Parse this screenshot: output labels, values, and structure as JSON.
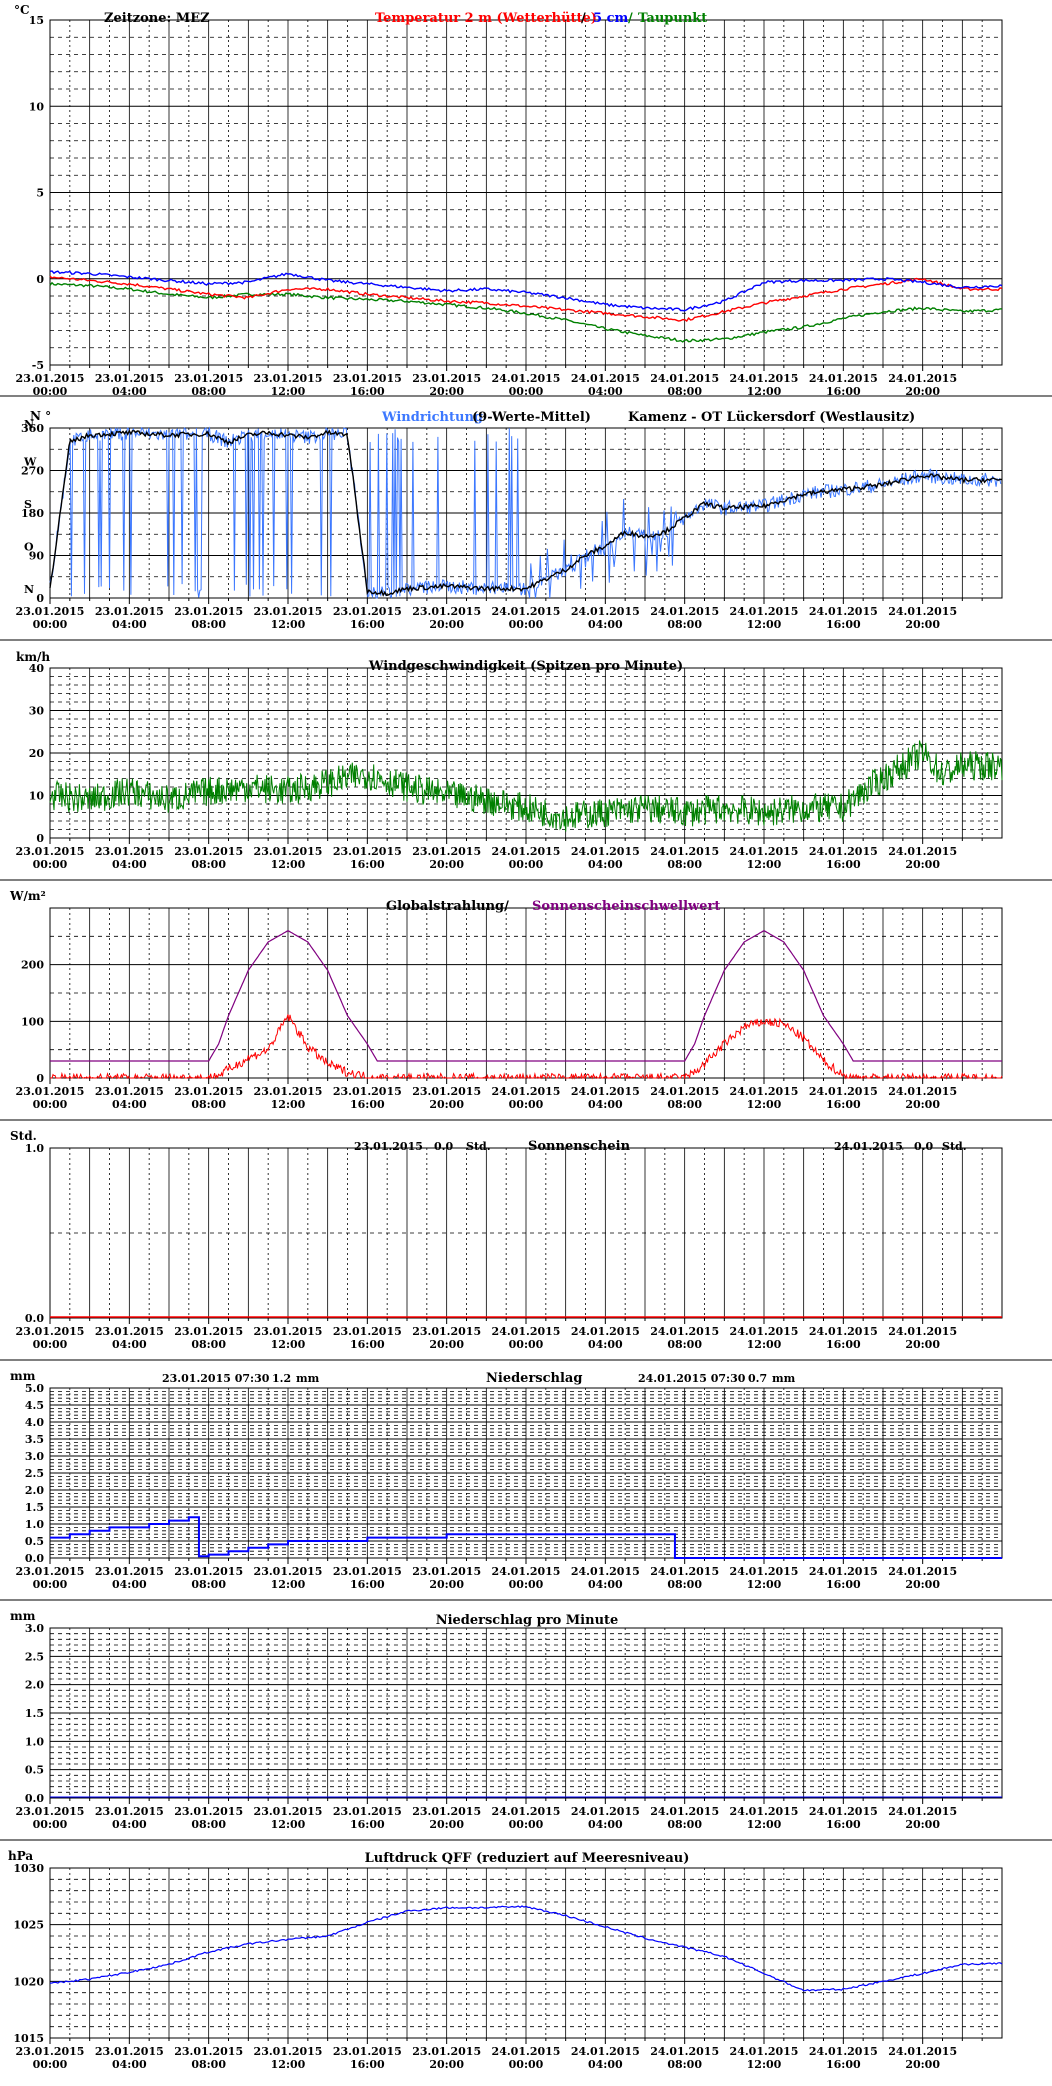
{
  "colors": {
    "temp2m": "#ff0000",
    "temp5cm": "#0000ff",
    "dewpoint": "#008000",
    "winddir_mean": "#0000ff",
    "winddir_raw": "#3c78ff",
    "windspeed": "#008000",
    "radiation": "#ff0000",
    "threshold": "#800080",
    "precip": "#0000ff",
    "pressure": "#0000ff",
    "grid": "#000000"
  },
  "x_ticks": [
    [
      "23.01.2015",
      "00:00"
    ],
    [
      "23.01.2015",
      "04:00"
    ],
    [
      "23.01.2015",
      "08:00"
    ],
    [
      "23.01.2015",
      "12:00"
    ],
    [
      "23.01.2015",
      "16:00"
    ],
    [
      "23.01.2015",
      "20:00"
    ],
    [
      "24.01.2015",
      "00:00"
    ],
    [
      "24.01.2015",
      "04:00"
    ],
    [
      "24.01.2015",
      "08:00"
    ],
    [
      "24.01.2015",
      "12:00"
    ],
    [
      "24.01.2015",
      "16:00"
    ],
    [
      "24.01.2015",
      "20:00"
    ]
  ],
  "chart_data": [
    {
      "type": "line",
      "unit": "°C",
      "title_parts": [
        "Zeitzone: MEZ",
        "Temperatur 2 m (Wetterhütte)",
        " / ",
        "5 cm",
        " / ",
        "Taupunkt"
      ],
      "ylim": [
        -5,
        15
      ],
      "y_ticks": [
        -5,
        0,
        5,
        10,
        15
      ],
      "x_hours": [
        0,
        2,
        4,
        6,
        8,
        10,
        12,
        14,
        16,
        18,
        20,
        22,
        24,
        26,
        28,
        30,
        32,
        34,
        36,
        38,
        40,
        42,
        44,
        46,
        48
      ],
      "series": [
        {
          "name": "Temperatur 2 m (Wetterhütte)",
          "values": [
            0.1,
            -0.1,
            -0.3,
            -0.6,
            -0.9,
            -1.1,
            -0.6,
            -0.6,
            -0.9,
            -1.1,
            -1.3,
            -1.4,
            -1.6,
            -1.8,
            -2.0,
            -2.2,
            -2.4,
            -1.9,
            -1.4,
            -1.0,
            -0.6,
            -0.3,
            0.0,
            -0.6,
            -0.6
          ]
        },
        {
          "name": "5 cm",
          "values": [
            0.4,
            0.3,
            0.1,
            -0.1,
            -0.3,
            -0.2,
            0.3,
            -0.1,
            -0.3,
            -0.5,
            -0.7,
            -0.6,
            -0.8,
            -1.1,
            -1.5,
            -1.7,
            -1.8,
            -1.3,
            -0.2,
            -0.1,
            -0.1,
            0.0,
            -0.2,
            -0.5,
            -0.4
          ]
        },
        {
          "name": "Taupunkt",
          "values": [
            -0.3,
            -0.4,
            -0.6,
            -0.9,
            -1.1,
            -0.9,
            -0.9,
            -1.1,
            -1.2,
            -1.3,
            -1.5,
            -1.7,
            -2.0,
            -2.4,
            -2.9,
            -3.3,
            -3.6,
            -3.5,
            -3.1,
            -2.8,
            -2.3,
            -1.9,
            -1.7,
            -1.9,
            -1.8
          ]
        }
      ]
    },
    {
      "type": "line",
      "unit": "N °",
      "title_parts": [
        "Windrichtung",
        " (9-Werte-Mittel)",
        "Kamenz - OT Lückersdorf (Westlausitz)"
      ],
      "ylim": [
        0,
        360
      ],
      "y_ticks": [
        0,
        90,
        180,
        270,
        360
      ],
      "y_labels": [
        "N",
        "O",
        "S",
        "W",
        "N"
      ],
      "x_hours": [
        0,
        1,
        2,
        4,
        6,
        8,
        9,
        10,
        11,
        12,
        13,
        14,
        15,
        16,
        17,
        18,
        20,
        22,
        24,
        25,
        26,
        27,
        28,
        29,
        30,
        31,
        32,
        33,
        34,
        36,
        38,
        40,
        42,
        44,
        46,
        48
      ],
      "series": [
        {
          "name": "9-Werte-Mittel",
          "values": [
            20,
            330,
            345,
            350,
            345,
            348,
            330,
            345,
            350,
            345,
            340,
            350,
            345,
            15,
            10,
            20,
            25,
            20,
            20,
            40,
            60,
            90,
            110,
            140,
            130,
            140,
            170,
            200,
            190,
            195,
            220,
            230,
            240,
            260,
            250,
            250
          ]
        }
      ]
    },
    {
      "type": "line",
      "unit": "km/h",
      "title": "Windgeschwindigkeit (Spitzen pro Minute)",
      "ylim": [
        0,
        40
      ],
      "y_ticks": [
        0,
        10,
        20,
        30,
        40
      ],
      "x_hours": [
        0,
        2,
        4,
        6,
        8,
        10,
        12,
        14,
        16,
        18,
        20,
        22,
        24,
        26,
        28,
        30,
        32,
        34,
        36,
        38,
        40,
        41,
        42,
        43,
        44,
        45,
        46,
        48
      ],
      "series": [
        {
          "name": "Windgeschwindigkeit",
          "values": [
            10,
            9,
            11,
            9,
            11,
            12,
            11,
            13,
            15,
            12,
            10,
            9,
            7,
            5,
            6,
            7,
            6,
            7,
            6,
            7,
            7,
            11,
            14,
            17,
            20,
            15,
            17,
            17
          ]
        }
      ]
    },
    {
      "type": "line",
      "unit": "W/m²",
      "title_parts": [
        "Globalstrahlung/ ",
        "Sonnenscheinschwellwert"
      ],
      "ylim": [
        0,
        300
      ],
      "y_ticks": [
        0,
        100,
        200
      ],
      "x_hours": [
        0,
        8,
        8.5,
        9,
        10,
        11,
        12,
        13,
        14,
        15,
        16,
        16.5,
        24,
        32,
        32.5,
        33,
        34,
        35,
        36,
        37,
        38,
        39,
        40,
        40.5,
        48
      ],
      "series": [
        {
          "name": "Globalstrahlung",
          "values": [
            0,
            0,
            5,
            15,
            35,
            50,
            110,
            55,
            25,
            10,
            2,
            0,
            0,
            0,
            10,
            25,
            60,
            90,
            100,
            95,
            70,
            30,
            5,
            0,
            0
          ]
        },
        {
          "name": "Sonnenscheinschwellwert",
          "values": [
            30,
            30,
            60,
            110,
            190,
            240,
            260,
            240,
            190,
            110,
            60,
            30,
            30,
            30,
            60,
            110,
            190,
            240,
            260,
            240,
            190,
            110,
            60,
            30,
            30
          ]
        }
      ]
    },
    {
      "type": "line",
      "unit": "Std.",
      "title": "Sonnenschein",
      "ylim": [
        0,
        1
      ],
      "y_ticks": [
        0,
        1
      ],
      "y_tick_labels": [
        "0.0",
        "1.0"
      ],
      "daily_totals": [
        {
          "date": "23.01.2015",
          "value": "0.0",
          "unit": "Std."
        },
        {
          "date": "24.01.2015",
          "value": "0.0",
          "unit": "Std."
        }
      ],
      "series": [
        {
          "name": "Sonnenschein",
          "values": [
            0,
            0
          ]
        }
      ]
    },
    {
      "type": "line",
      "unit": "mm",
      "title": "Niederschlag",
      "ylim": [
        0,
        5
      ],
      "y_ticks": [
        0,
        0.5,
        1,
        1.5,
        2,
        2.5,
        3,
        3.5,
        4,
        4.5,
        5
      ],
      "y_tick_labels": [
        "0.0",
        "0.5",
        "1.0",
        "1.5",
        "2.0",
        "2.5",
        "3.0",
        "3.5",
        "4.0",
        "4.5",
        "5.0"
      ],
      "daily_totals": [
        {
          "date": "23.01.2015 07:30",
          "value": "1.2",
          "unit": "mm"
        },
        {
          "date": "24.01.2015 07:30",
          "value": "0.7",
          "unit": "mm"
        }
      ],
      "x_hours": [
        0,
        1,
        2,
        3,
        4,
        5,
        6,
        7,
        7.5,
        7.51,
        8,
        9,
        10,
        11,
        12,
        16,
        20,
        24,
        28,
        31.5,
        31.51,
        48
      ],
      "series": [
        {
          "name": "Niederschlag",
          "values": [
            0.6,
            0.7,
            0.8,
            0.9,
            0.9,
            1.0,
            1.1,
            1.2,
            1.2,
            0.05,
            0.1,
            0.2,
            0.3,
            0.4,
            0.5,
            0.6,
            0.7,
            0.7,
            0.7,
            0.7,
            0.0,
            0.0
          ]
        }
      ]
    },
    {
      "type": "line",
      "unit": "mm",
      "title": "Niederschlag pro Minute",
      "ylim": [
        0,
        3
      ],
      "y_ticks": [
        0,
        0.5,
        1,
        1.5,
        2,
        2.5,
        3
      ],
      "y_tick_labels": [
        "0.0",
        "0.5",
        "1.0",
        "1.5",
        "2.0",
        "2.5",
        "3.0"
      ],
      "series": [
        {
          "name": "Niederschlag pro Minute",
          "values": [
            0,
            0
          ]
        }
      ]
    },
    {
      "type": "line",
      "unit": "hPa",
      "title": "Luftdruck QFF (reduziert auf Meeresniveau)",
      "ylim": [
        1015,
        1030
      ],
      "y_ticks": [
        1015,
        1020,
        1025,
        1030
      ],
      "x_hours": [
        0,
        2,
        4,
        6,
        8,
        10,
        12,
        14,
        16,
        18,
        20,
        22,
        24,
        26,
        28,
        30,
        32,
        34,
        36,
        38,
        40,
        42,
        44,
        46,
        48
      ],
      "series": [
        {
          "name": "Luftdruck QFF",
          "values": [
            1019.8,
            1020.2,
            1020.8,
            1021.5,
            1022.6,
            1023.3,
            1023.7,
            1024.0,
            1025.2,
            1026.2,
            1026.5,
            1026.5,
            1026.6,
            1025.8,
            1024.8,
            1023.8,
            1023.0,
            1022.2,
            1020.7,
            1019.2,
            1019.3,
            1020.0,
            1020.7,
            1021.5,
            1021.6
          ]
        }
      ]
    }
  ]
}
